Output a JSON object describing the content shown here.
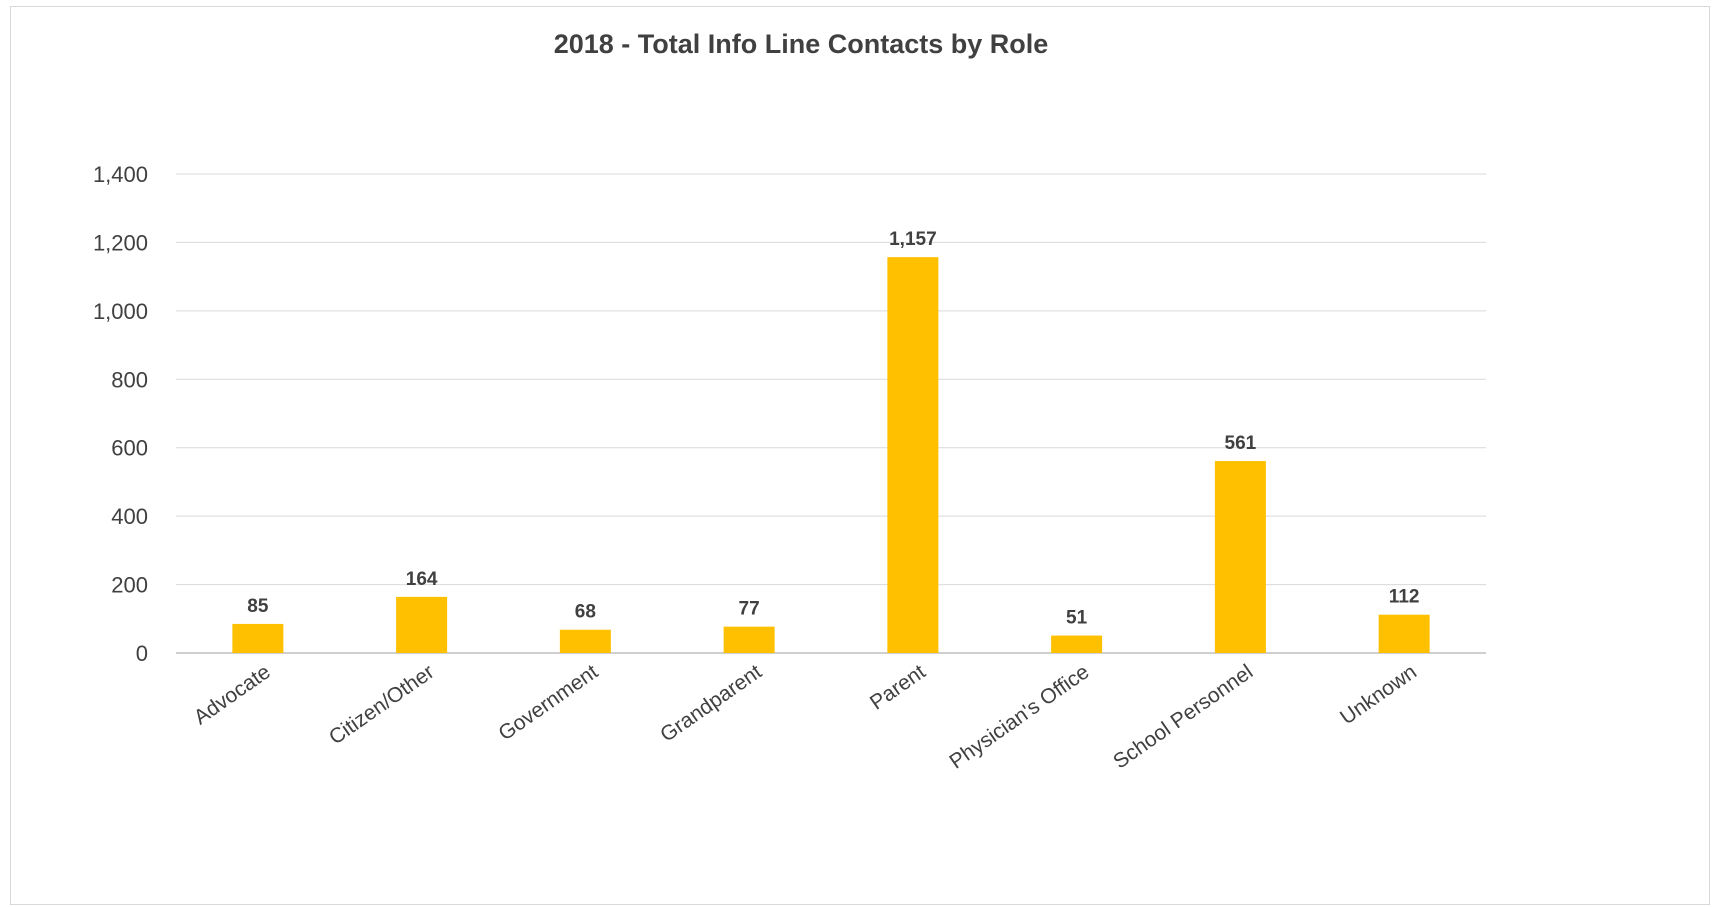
{
  "chart_data": {
    "type": "bar",
    "title": "2018 - Total Info Line Contacts by Role",
    "xlabel": "",
    "ylabel": "",
    "categories": [
      "Advocate",
      "Citizen/Other",
      "Government",
      "Grandparent",
      "Parent",
      "Physician's Office",
      "School Personnel",
      "Unknown"
    ],
    "values": [
      85,
      164,
      68,
      77,
      1157,
      51,
      561,
      112
    ],
    "value_labels": [
      "85",
      "164",
      "68",
      "77",
      "1,157",
      "51",
      "561",
      "112"
    ],
    "ylim": [
      0,
      1400
    ],
    "yticks": [
      0,
      200,
      400,
      600,
      800,
      1000,
      1200,
      1400
    ],
    "ytick_labels": [
      "0",
      "200",
      "400",
      "600",
      "800",
      "1,000",
      "1,200",
      "1,400"
    ],
    "grid": true,
    "legend": "none",
    "bar_color": "#FFC000",
    "gridline_color": "#d9d9d9"
  }
}
